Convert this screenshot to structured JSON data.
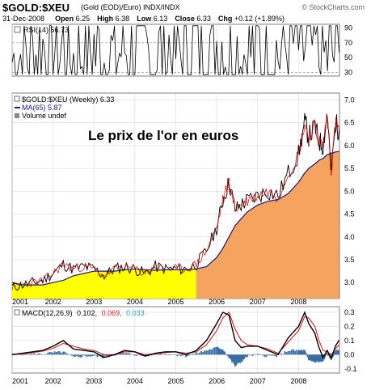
{
  "header": {
    "symbol": "$GOLD:$XEU",
    "description": "(Gold (EOD)/Euro) INDX/INDX",
    "brand": "© StockCharts.com",
    "date": "31-Dec-2008",
    "open_label": "Open",
    "open": "6.25",
    "high_label": "High",
    "high": "6.38",
    "low_label": "Low",
    "low": "6.13",
    "close_label": "Close",
    "close": "6.33",
    "chg_label": "Chg",
    "chg": "+0.12 (+1.89%)"
  },
  "colors": {
    "background": "#ffffff",
    "panel_border": "#7f7f7f",
    "grid": "#d9d9d9",
    "price_line": "#000000",
    "price_overlay": "#cc0000",
    "ma_line": "#1a1a80",
    "fill_early": "#ffff00",
    "fill_late": "#f5a460",
    "macd_line": "#000000",
    "signal_line": "#d62020",
    "histogram": "#3a6ea5",
    "rsi_line": "#000000"
  },
  "chart_data": [
    {
      "type": "line",
      "name": "rsi",
      "legend": "RSI(14) 56.73",
      "x": [
        2001.0,
        2001.25,
        2001.5,
        2001.75,
        2002.0,
        2002.25,
        2002.5,
        2002.75,
        2003.0,
        2003.25,
        2003.5,
        2003.75,
        2004.0,
        2004.25,
        2004.5,
        2004.75,
        2005.0,
        2005.25,
        2005.5,
        2005.75,
        2006.0,
        2006.25,
        2006.5,
        2006.75,
        2007.0,
        2007.25,
        2007.5,
        2007.75,
        2008.0,
        2008.25,
        2008.5,
        2008.75,
        2008.99
      ],
      "values": [
        45,
        55,
        50,
        62,
        70,
        58,
        48,
        66,
        60,
        52,
        45,
        68,
        62,
        55,
        48,
        64,
        57,
        52,
        62,
        70,
        74,
        75,
        55,
        60,
        62,
        52,
        56,
        68,
        70,
        62,
        46,
        50,
        57
      ],
      "yticks": [
        30,
        50,
        70,
        90
      ],
      "ylim": [
        25,
        95
      ],
      "reference_lines": [
        30,
        70
      ]
    },
    {
      "type": "line",
      "name": "price",
      "title": "Le prix de l'or en euros",
      "legend": [
        "$GOLD:$XEU (Weekly) 6.33",
        "MA(65) 5.87",
        "Volume undef"
      ],
      "x": [
        2001.0,
        2001.25,
        2001.5,
        2001.75,
        2002.0,
        2002.25,
        2002.5,
        2002.75,
        2003.0,
        2003.25,
        2003.5,
        2003.75,
        2004.0,
        2004.25,
        2004.5,
        2004.75,
        2005.0,
        2005.25,
        2005.5,
        2005.75,
        2006.0,
        2006.15,
        2006.3,
        2006.45,
        2006.6,
        2006.75,
        2007.0,
        2007.25,
        2007.5,
        2007.75,
        2008.0,
        2008.15,
        2008.25,
        2008.4,
        2008.5,
        2008.6,
        2008.7,
        2008.8,
        2008.9,
        2008.99
      ],
      "series": [
        {
          "name": "$GOLD:$XEU (Weekly)",
          "values": [
            2.9,
            2.95,
            3.0,
            3.05,
            3.2,
            3.4,
            3.3,
            3.35,
            3.3,
            3.15,
            3.3,
            3.35,
            3.3,
            3.2,
            3.35,
            3.3,
            3.3,
            3.3,
            3.4,
            3.7,
            4.2,
            4.8,
            5.2,
            4.6,
            4.7,
            4.8,
            4.9,
            5.0,
            4.9,
            5.4,
            5.8,
            6.5,
            6.2,
            6.4,
            6.1,
            6.0,
            6.7,
            5.4,
            6.5,
            6.33
          ]
        },
        {
          "name": "MA(65)",
          "values": [
            3.0,
            2.95,
            2.95,
            2.95,
            3.0,
            3.05,
            3.15,
            3.2,
            3.25,
            3.25,
            3.25,
            3.28,
            3.3,
            3.28,
            3.27,
            3.28,
            3.28,
            3.28,
            3.3,
            3.35,
            3.55,
            3.75,
            4.0,
            4.25,
            4.4,
            4.55,
            4.7,
            4.78,
            4.82,
            4.95,
            5.2,
            5.4,
            5.5,
            5.6,
            5.68,
            5.72,
            5.8,
            5.83,
            5.86,
            5.87
          ]
        }
      ],
      "fill_split_x": 2005.5,
      "yticks": [
        3.0,
        3.5,
        4.0,
        4.5,
        5.0,
        5.5,
        6.0,
        6.5,
        7.0
      ],
      "ylim": [
        2.65,
        7.15
      ],
      "xticks": [
        "2001",
        "2002",
        "2003",
        "2004",
        "2005",
        "2006",
        "2007",
        "2008"
      ]
    },
    {
      "type": "line",
      "name": "macd",
      "legend_label": "MACD(12,26,9)",
      "legend_values": [
        "0.102,",
        "0.069,",
        "0.033"
      ],
      "x": [
        2001.0,
        2001.25,
        2001.5,
        2001.75,
        2002.0,
        2002.25,
        2002.5,
        2002.75,
        2003.0,
        2003.25,
        2003.5,
        2003.75,
        2004.0,
        2004.25,
        2004.5,
        2004.75,
        2005.0,
        2005.25,
        2005.5,
        2005.75,
        2006.0,
        2006.15,
        2006.3,
        2006.45,
        2006.6,
        2006.75,
        2007.0,
        2007.25,
        2007.5,
        2007.75,
        2008.0,
        2008.15,
        2008.25,
        2008.4,
        2008.5,
        2008.6,
        2008.7,
        2008.8,
        2008.9,
        2008.99
      ],
      "series": [
        {
          "name": "MACD",
          "values": [
            0.0,
            0.01,
            0.02,
            0.03,
            0.06,
            0.1,
            0.04,
            0.03,
            0.02,
            -0.02,
            0.0,
            0.03,
            0.02,
            -0.01,
            0.01,
            0.02,
            0.02,
            0.0,
            0.03,
            0.1,
            0.22,
            0.3,
            0.28,
            0.1,
            0.05,
            0.06,
            0.06,
            0.03,
            0.0,
            0.12,
            0.2,
            0.3,
            0.22,
            0.15,
            0.05,
            -0.02,
            0.03,
            -0.03,
            0.06,
            0.102
          ]
        },
        {
          "name": "Signal",
          "values": [
            0.0,
            0.005,
            0.015,
            0.025,
            0.045,
            0.08,
            0.06,
            0.04,
            0.03,
            0.0,
            0.0,
            0.02,
            0.02,
            0.0,
            0.005,
            0.015,
            0.02,
            0.01,
            0.02,
            0.07,
            0.17,
            0.26,
            0.3,
            0.18,
            0.1,
            0.07,
            0.06,
            0.04,
            0.01,
            0.09,
            0.17,
            0.27,
            0.26,
            0.2,
            0.1,
            0.03,
            0.02,
            0.0,
            0.04,
            0.069
          ]
        }
      ],
      "histogram": [
        0.0,
        0.005,
        0.005,
        0.005,
        0.015,
        0.02,
        -0.02,
        -0.01,
        -0.01,
        -0.02,
        0.0,
        0.01,
        0.0,
        -0.01,
        0.005,
        0.005,
        0.0,
        -0.01,
        0.01,
        0.03,
        0.05,
        0.04,
        -0.02,
        -0.08,
        -0.05,
        -0.01,
        0.0,
        -0.01,
        -0.01,
        0.03,
        0.03,
        0.03,
        -0.04,
        -0.05,
        -0.05,
        -0.05,
        0.01,
        -0.03,
        0.02,
        0.033
      ],
      "yticks": [
        -0.1,
        0.0,
        0.1,
        0.2,
        0.3
      ],
      "ylim": [
        -0.13,
        0.34
      ],
      "xticks": [
        "2001",
        "2002",
        "2003",
        "2004",
        "2005",
        "2006",
        "2007",
        "2008"
      ]
    }
  ]
}
